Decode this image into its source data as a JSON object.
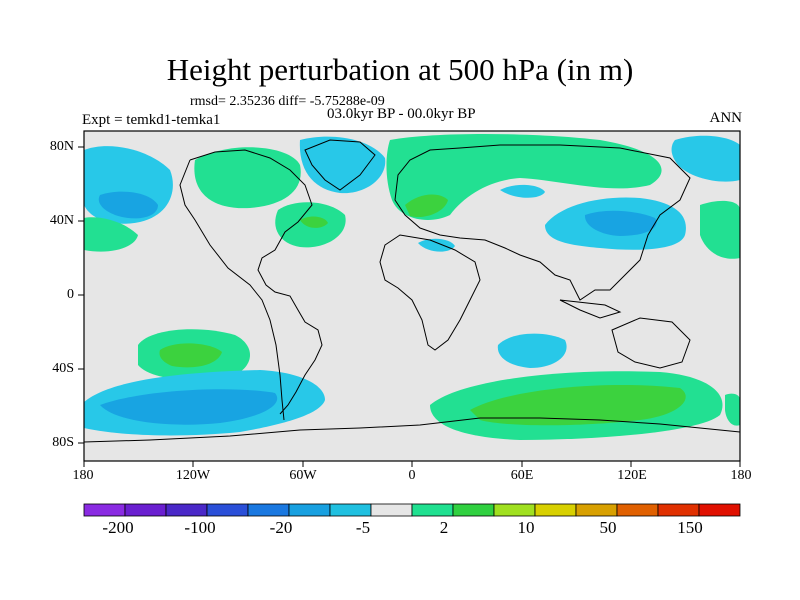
{
  "title": "Height perturbation at 500 hPa (in m)",
  "subtitle_stats": "rmsd= 2.35236 diff= -5.75288e-09",
  "subtitle_period": "03.0kyr BP - 00.0kyr BP",
  "left_label": "Expt = temkd1-temka1",
  "right_label": "ANN",
  "y_ticks": [
    "80N",
    "40N",
    "0",
    "40S",
    "80S"
  ],
  "x_ticks": [
    "180",
    "120W",
    "60W",
    "0",
    "60E",
    "120E",
    "180"
  ],
  "colorbar": {
    "colors": [
      "#8a2be2",
      "#6a1fd0",
      "#4a28c8",
      "#2a4fd8",
      "#1a78e0",
      "#18a0e0",
      "#20c0e0",
      "#e6e6e6",
      "#20e090",
      "#30d040",
      "#a0e020",
      "#d8d000",
      "#d8a000",
      "#e06000",
      "#e03000",
      "#e01000"
    ],
    "tick_labels": [
      "-200",
      "-100",
      "-20",
      "-5",
      "2",
      "10",
      "50",
      "150"
    ]
  },
  "field_colors": {
    "neutral": "#e6e6e6",
    "neg_light": "#28c8e8",
    "neg_mid": "#18a4e2",
    "pos_light": "#22e092",
    "pos_mid": "#3cd23e"
  }
}
